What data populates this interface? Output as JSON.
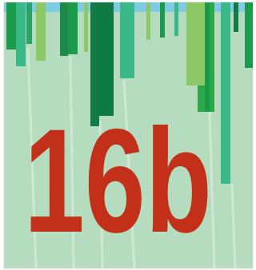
{
  "text": "16b"
}
